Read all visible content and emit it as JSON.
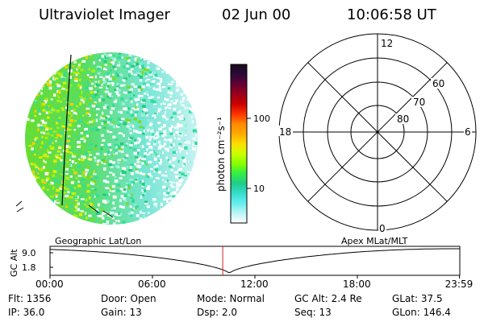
{
  "header": {
    "title": "Ultraviolet Imager",
    "date": "02 Jun 00",
    "time": "10:06:58 UT"
  },
  "colorbar": {
    "label": "photon cm⁻²s⁻¹",
    "ticks": [
      "100",
      "10"
    ],
    "colors": [
      "#1a0a1a",
      "#2a0a3a",
      "#660033",
      "#99001a",
      "#cc0000",
      "#ff3300",
      "#ff8800",
      "#ffaa00",
      "#ffdd00",
      "#ccff00",
      "#88ff00",
      "#33ee44",
      "#22cc88",
      "#33ddcc",
      "#66eeee",
      "#bbf5f5",
      "#ffffff"
    ]
  },
  "polar": {
    "mlt_labels": {
      "top": "12",
      "left": "18",
      "right": "6",
      "bottom": "0"
    },
    "lat_labels": [
      "60",
      "70",
      "80"
    ]
  },
  "timeline": {
    "left_title": "Geographic Lat/Lon",
    "right_title": "Apex MLat/MLT",
    "axis_label": "GC Alt",
    "y_ticks": [
      "9.0",
      "1.8"
    ],
    "x_ticks": [
      "00:00",
      "06:00",
      "12:00",
      "18:00",
      "23:59"
    ],
    "current_time_hours": 10.116,
    "min_altitude_time_hours": 10.5
  },
  "status": {
    "flt": "Flt: 1356",
    "ip": "IP: 36.0",
    "door": "Door: Open",
    "gain": "Gain: 13",
    "mode": "Mode: Normal",
    "dsp": "Dsp:    2.0",
    "gcalt": "GC Alt: 2.4 Re",
    "seq": "Seq: 13",
    "glat": "GLat:  37.5",
    "glon": "GLon: 146.4"
  },
  "colors": {
    "marker": "#cc2222",
    "line": "#000000"
  }
}
